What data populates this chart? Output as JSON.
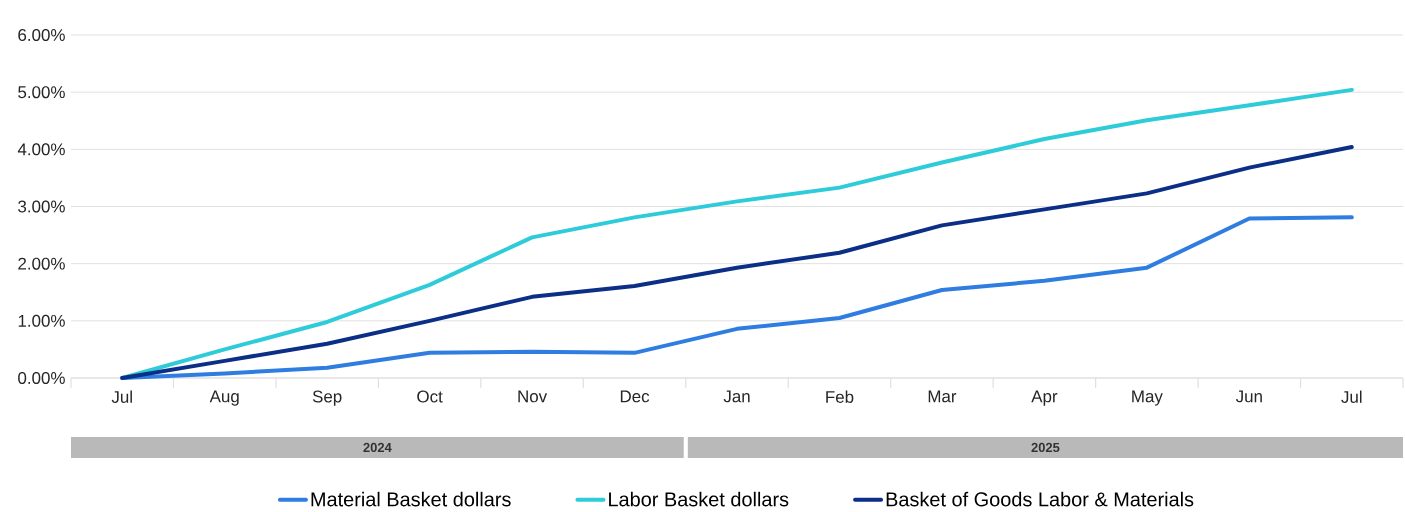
{
  "chart_data": {
    "type": "line",
    "categories": [
      "Jul",
      "Aug",
      "Sep",
      "Oct",
      "Nov",
      "Dec",
      "Jan",
      "Feb",
      "Mar",
      "Apr",
      "May",
      "Jun",
      "Jul"
    ],
    "series": [
      {
        "name": "Material Basket dollars",
        "color": "#2f7de1",
        "values": [
          0,
          0.08,
          0.18,
          0.44,
          0.46,
          0.44,
          0.86,
          1.05,
          1.54,
          1.7,
          1.93,
          2.79,
          2.81
        ]
      },
      {
        "name": "Labor Basket dollars",
        "color": "#2ecbd9",
        "values": [
          0,
          0.5,
          0.98,
          1.63,
          2.46,
          2.81,
          3.09,
          3.33,
          3.77,
          4.18,
          4.51,
          4.77,
          5.04
        ]
      },
      {
        "name": "Basket of Goods Labor & Materials",
        "color": "#0b2f87",
        "values": [
          0,
          0.3,
          0.6,
          1.0,
          1.42,
          1.61,
          1.93,
          2.19,
          2.67,
          2.95,
          3.23,
          3.68,
          4.04
        ]
      }
    ],
    "ylim": [
      0,
      6
    ],
    "yticks": [
      {
        "value": 0,
        "label": "0.00%"
      },
      {
        "value": 1,
        "label": "1.00%"
      },
      {
        "value": 2,
        "label": "2.00%"
      },
      {
        "value": 3,
        "label": "3.00%"
      },
      {
        "value": 4,
        "label": "4.00%"
      },
      {
        "value": 5,
        "label": "5.00%"
      },
      {
        "value": 6,
        "label": "6.00%"
      }
    ],
    "annotations": [
      "2024",
      "2025"
    ],
    "grid": "y",
    "legend": "bottom",
    "marker": "none",
    "line_style": "solid"
  }
}
